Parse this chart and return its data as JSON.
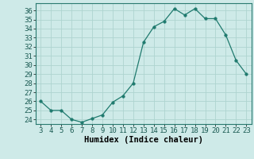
{
  "x": [
    3,
    4,
    5,
    6,
    7,
    8,
    9,
    10,
    11,
    12,
    13,
    14,
    15,
    16,
    17,
    18,
    19,
    20,
    21,
    22,
    23
  ],
  "y": [
    26,
    25,
    25,
    24,
    23.7,
    24.1,
    24.5,
    25.9,
    26.6,
    28,
    32.5,
    34.2,
    34.8,
    36.2,
    35.5,
    36.2,
    35.1,
    35.1,
    33.3,
    30.5,
    29
  ],
  "line_color": "#1f7a6e",
  "marker": "o",
  "marker_size": 2.5,
  "bg_color": "#ceeae8",
  "grid_color": "#aed4d0",
  "xlabel": "Humidex (Indice chaleur)",
  "xlim": [
    2.5,
    23.5
  ],
  "ylim": [
    23.5,
    36.8
  ],
  "yticks": [
    24,
    25,
    26,
    27,
    28,
    29,
    30,
    31,
    32,
    33,
    34,
    35,
    36
  ],
  "xticks": [
    3,
    4,
    5,
    6,
    7,
    8,
    9,
    10,
    11,
    12,
    13,
    14,
    15,
    16,
    17,
    18,
    19,
    20,
    21,
    22,
    23
  ],
  "label_fontsize": 7.5,
  "tick_fontsize": 6.5
}
